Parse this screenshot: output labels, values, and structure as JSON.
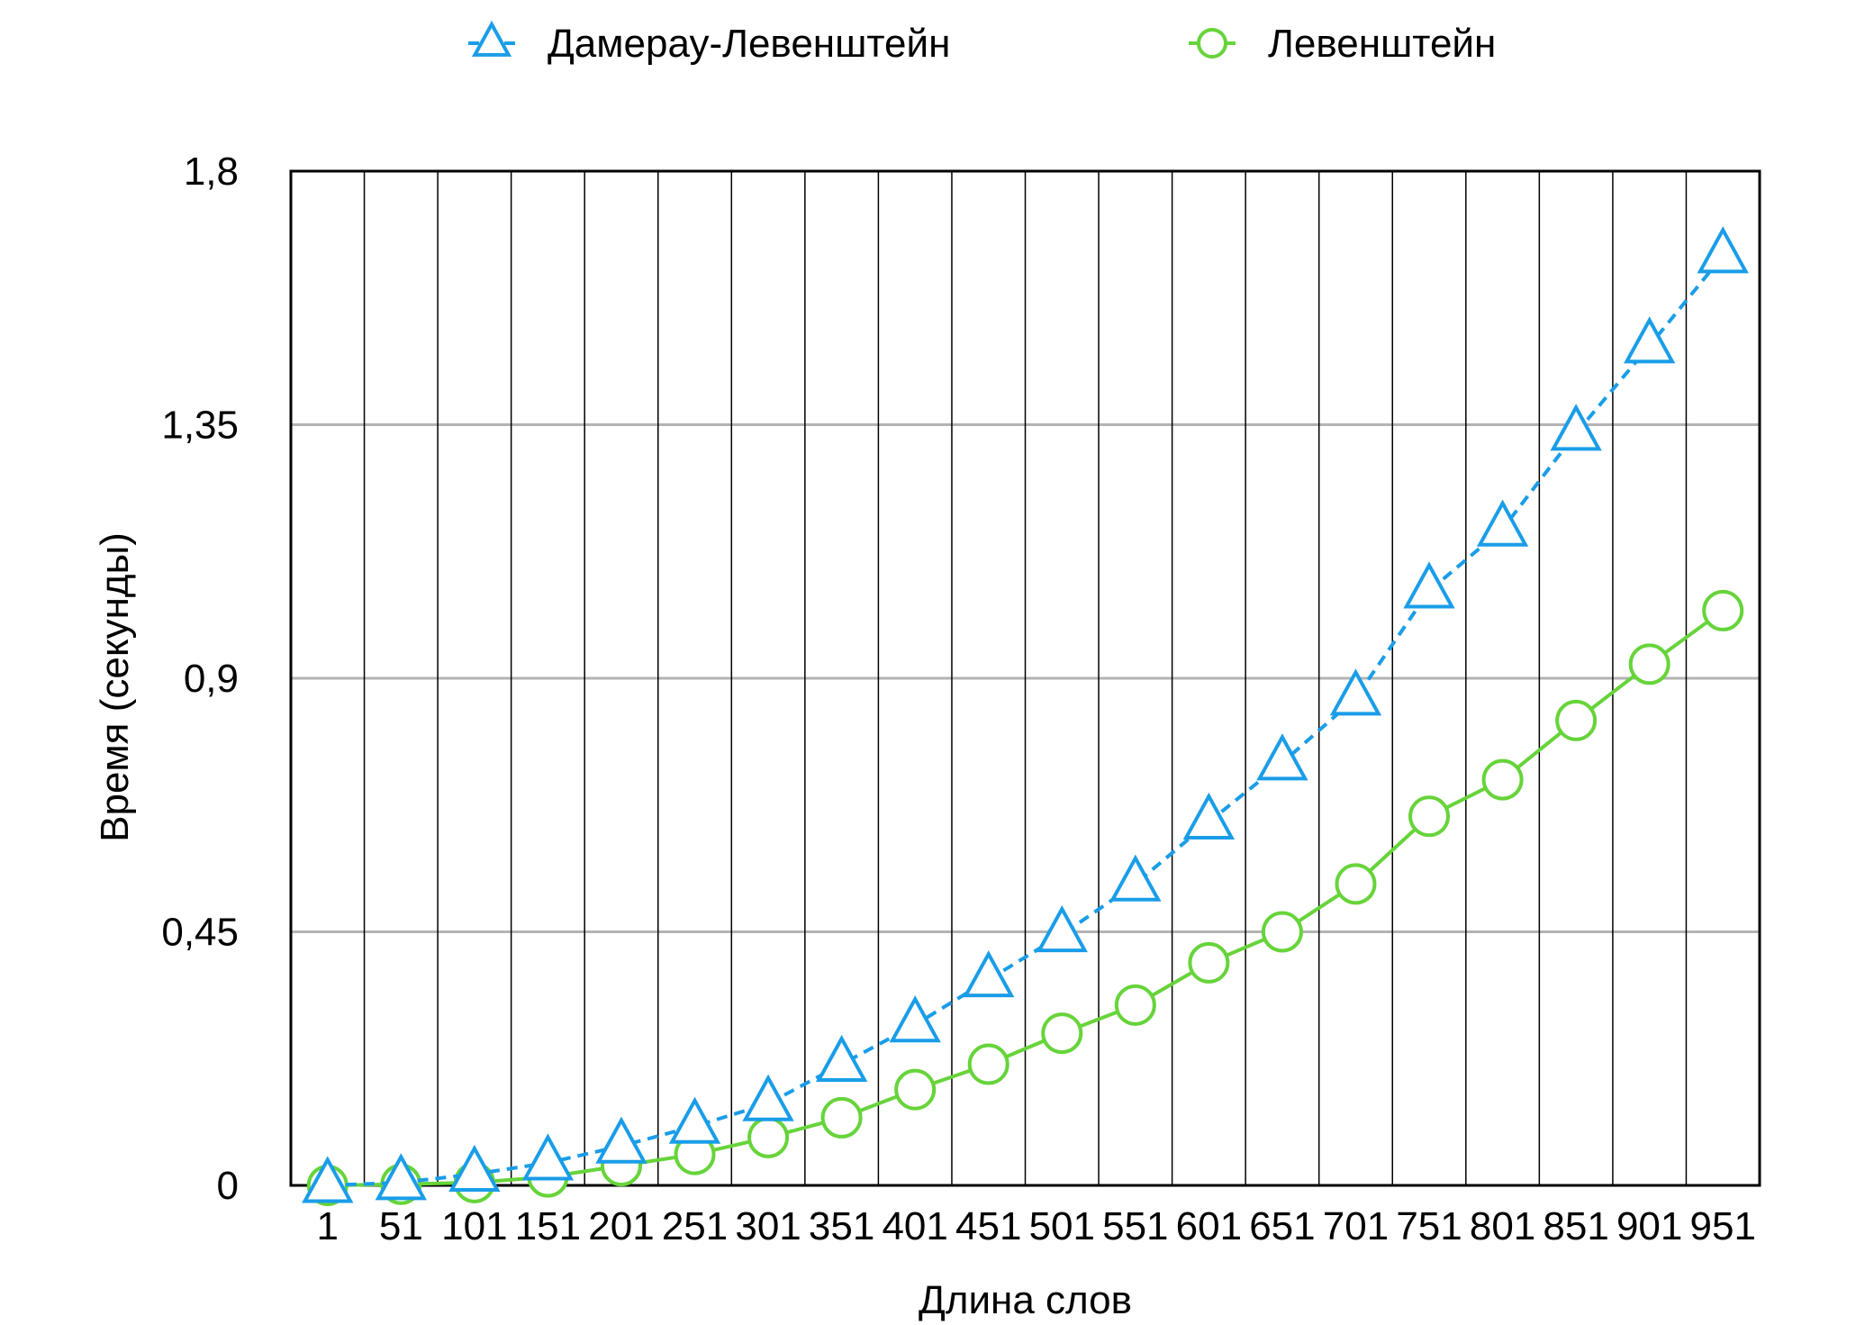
{
  "chart_data": {
    "type": "line",
    "title": "",
    "xlabel": "Длина слов",
    "ylabel": "Время (секунды)",
    "categories": [
      "1",
      "51",
      "101",
      "151",
      "201",
      "251",
      "301",
      "351",
      "401",
      "451",
      "501",
      "551",
      "601",
      "651",
      "701",
      "751",
      "801",
      "851",
      "901",
      "951"
    ],
    "yticks": [
      "0",
      "0,45",
      "0,9",
      "1,35",
      "1,8"
    ],
    "ylim": [
      0,
      1.8
    ],
    "grid": {
      "vertical": true,
      "horizontal": true
    },
    "legend": "top",
    "series": [
      {
        "name": "Дамерау-Левенштейн",
        "color": "#1a9de8",
        "marker": "triangle",
        "line": "dashed",
        "values": [
          0.0,
          0.005,
          0.02,
          0.04,
          0.07,
          0.105,
          0.145,
          0.215,
          0.285,
          0.365,
          0.445,
          0.535,
          0.645,
          0.75,
          0.865,
          1.055,
          1.165,
          1.335,
          1.49,
          1.65
        ]
      },
      {
        "name": "Левенштейн",
        "color": "#66d43a",
        "marker": "circle",
        "line": "solid",
        "values": [
          0.0,
          0.002,
          0.005,
          0.015,
          0.035,
          0.055,
          0.085,
          0.12,
          0.17,
          0.215,
          0.27,
          0.32,
          0.395,
          0.45,
          0.535,
          0.655,
          0.72,
          0.825,
          0.925,
          1.02
        ]
      }
    ]
  }
}
